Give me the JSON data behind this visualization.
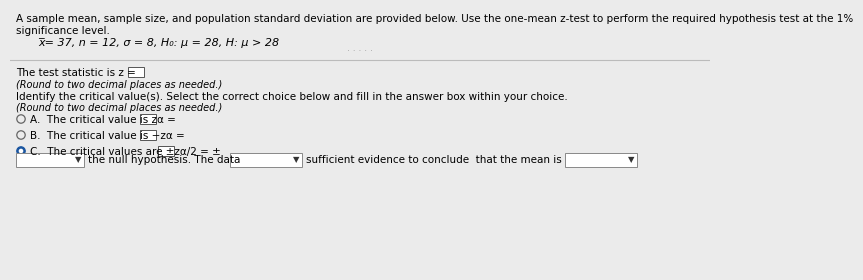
{
  "bg_color": "#ebebeb",
  "white": "#ffffff",
  "title1": "A sample mean, sample size, and population standard deviation are provided below. Use the one-mean z-test to perform the required hypothesis test at the 1%",
  "title2": "significance level.",
  "formula": "x̅= 37, n = 12, σ = 8, H₀: μ = 28, H⁡: μ > 28",
  "stat_line": "The test statistic is z =",
  "round1": "(Round to two decimal places as needed.)",
  "identify": "Identify the critical value(s). Select the correct choice below and fill in the answer box within your choice.",
  "round2": "(Round to two decimal places as needed.)",
  "optA": "A.  The critical value is zα =",
  "optB": "B.  The critical value is −zα =",
  "optC": "C.  The critical values are ±zα/2 = ±",
  "bot1": "the null hypothesis. The data",
  "bot2": "sufficient evidence to conclude  that the mean is",
  "dots": "· · · · ·"
}
